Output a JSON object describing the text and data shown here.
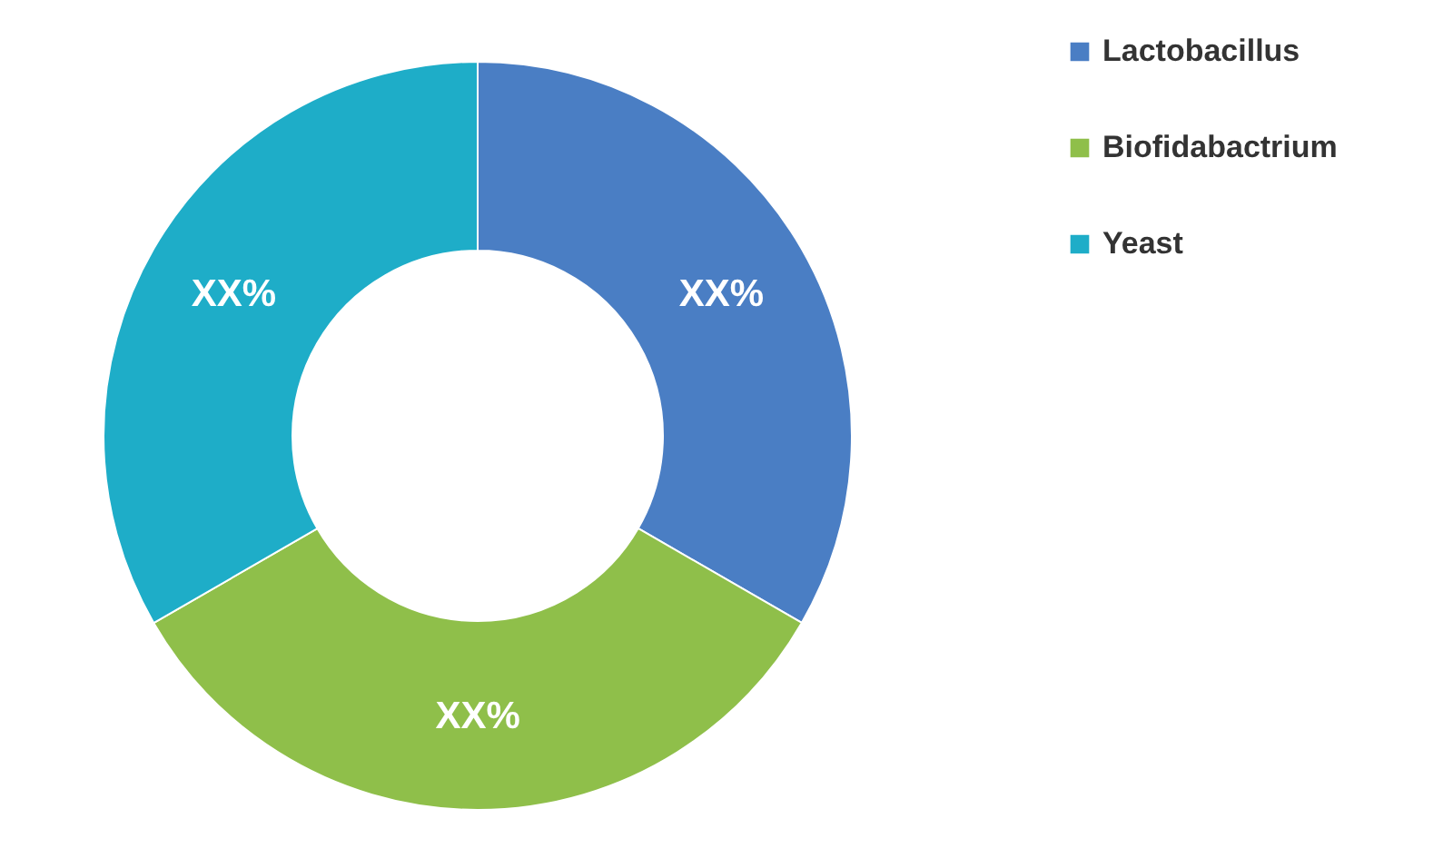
{
  "chart_data": {
    "type": "donut",
    "categories": [
      "Lactobacillus",
      "Biofidabactrium",
      "Yeast"
    ],
    "values": [
      33.33,
      33.33,
      33.34
    ],
    "colors": [
      "#4a7ec4",
      "#8fbf4a",
      "#1eadc8"
    ],
    "value_labels": [
      "XX%",
      "XX%",
      "XX%"
    ],
    "legend": "right"
  }
}
